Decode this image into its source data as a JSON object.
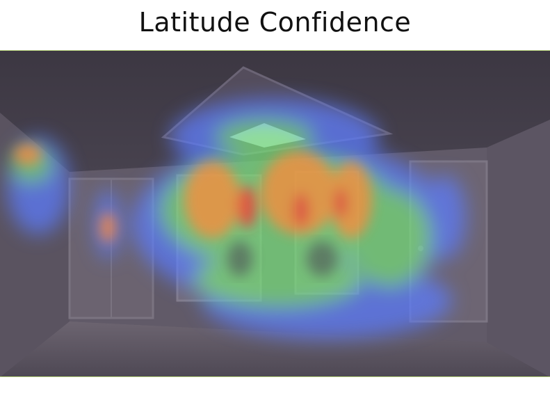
{
  "title": "Latitude Confidence",
  "colors": {
    "base_tint": "#4a4552",
    "heat_low": "#5b7cff",
    "heat_mid": "#78e07a",
    "heat_high": "#ff8a3a",
    "heat_peak": "#ff3030"
  }
}
